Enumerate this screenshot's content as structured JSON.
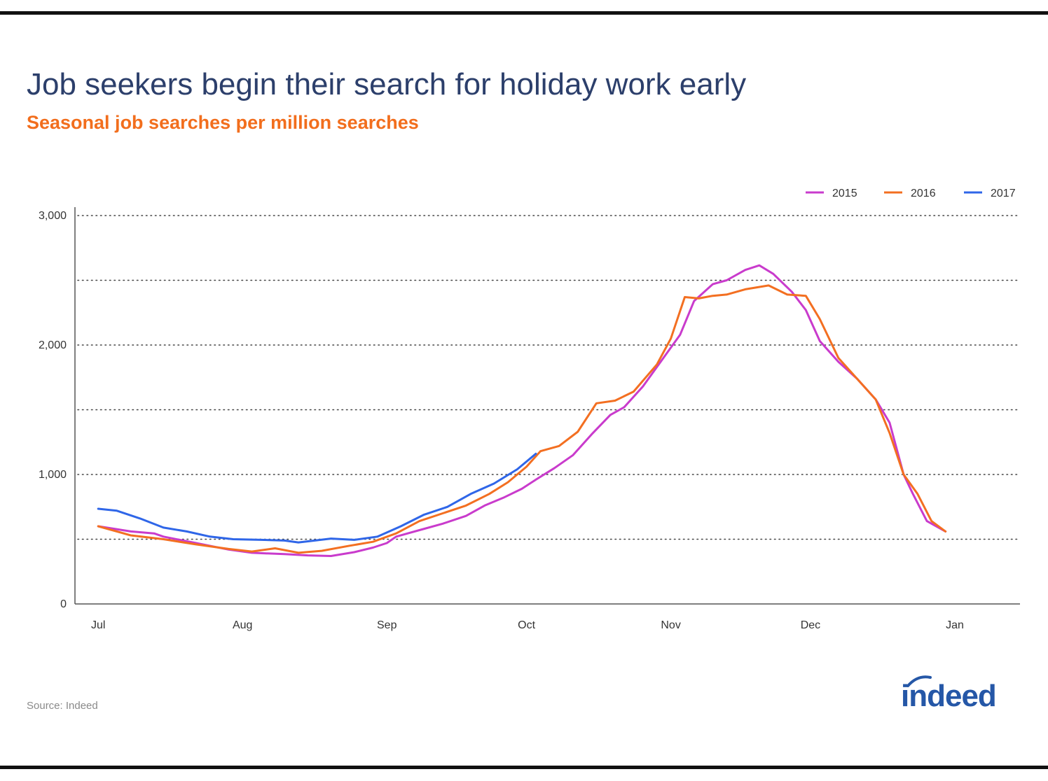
{
  "title": "Job seekers begin their search for holiday work early",
  "subtitle": "Seasonal job searches per million searches",
  "source": "Source: Indeed",
  "logo": {
    "text": "indeed",
    "icon": "indeed-logo-icon",
    "color": "#2557a7"
  },
  "colors": {
    "2015": "#c93bcc",
    "2016": "#f36f21",
    "2017": "#2f66e8",
    "title": "#2c3f6b",
    "subtitle": "#f26e1d"
  },
  "chart_data": {
    "type": "line",
    "title": "Job seekers begin their search for holiday work early",
    "subtitle": "Seasonal job searches per million searches",
    "xlabel": "",
    "ylabel": "",
    "x_ticks": [
      "Jul",
      "Aug",
      "Sep",
      "Oct",
      "Nov",
      "Dec",
      "Jan"
    ],
    "y_ticks": [
      0,
      500,
      1000,
      1500,
      2000,
      2500,
      3000
    ],
    "y_tick_labels": [
      "0",
      "",
      "1,000",
      "",
      "2,000",
      "",
      "3,000"
    ],
    "ylim": [
      0,
      3000
    ],
    "xlim": [
      "Jun 26",
      "Jan 15"
    ],
    "grid": "horizontal dotted",
    "legend": "top-right",
    "series": [
      {
        "name": "2015",
        "color": "#c93bcc",
        "points": [
          [
            "Jul 1",
            600
          ],
          [
            "Jul 8",
            560
          ],
          [
            "Jul 13",
            545
          ],
          [
            "Jul 15",
            520
          ],
          [
            "Jul 22",
            470
          ],
          [
            "Jul 29",
            420
          ],
          [
            "Aug 3",
            395
          ],
          [
            "Aug 10",
            385
          ],
          [
            "Aug 15",
            375
          ],
          [
            "Aug 20",
            370
          ],
          [
            "Aug 25",
            400
          ],
          [
            "Aug 29",
            435
          ],
          [
            "Sep 1",
            470
          ],
          [
            "Sep 3",
            520
          ],
          [
            "Sep 8",
            570
          ],
          [
            "Sep 13",
            620
          ],
          [
            "Sep 18",
            680
          ],
          [
            "Sep 22",
            760
          ],
          [
            "Sep 26",
            820
          ],
          [
            "Sep 30",
            890
          ],
          [
            "Oct 3",
            960
          ],
          [
            "Oct 7",
            1050
          ],
          [
            "Oct 11",
            1150
          ],
          [
            "Oct 15",
            1310
          ],
          [
            "Oct 19",
            1460
          ],
          [
            "Oct 22",
            1520
          ],
          [
            "Oct 26",
            1680
          ],
          [
            "Oct 30",
            1880
          ],
          [
            "Nov 3",
            2080
          ],
          [
            "Nov 6",
            2340
          ],
          [
            "Nov 10",
            2470
          ],
          [
            "Nov 13",
            2500
          ],
          [
            "Nov 17",
            2580
          ],
          [
            "Nov 20",
            2615
          ],
          [
            "Nov 23",
            2550
          ],
          [
            "Nov 27",
            2410
          ],
          [
            "Nov 30",
            2270
          ],
          [
            "Dec 3",
            2030
          ],
          [
            "Dec 7",
            1870
          ],
          [
            "Dec 11",
            1740
          ],
          [
            "Dec 15",
            1580
          ],
          [
            "Dec 18",
            1400
          ],
          [
            "Dec 21",
            1000
          ],
          [
            "Dec 23",
            850
          ],
          [
            "Dec 26",
            640
          ],
          [
            "Dec 30",
            560
          ]
        ]
      },
      {
        "name": "2016",
        "color": "#f36f21",
        "points": [
          [
            "Jul 1",
            600
          ],
          [
            "Jul 8",
            530
          ],
          [
            "Jul 15",
            500
          ],
          [
            "Jul 22",
            460
          ],
          [
            "Jul 29",
            425
          ],
          [
            "Aug 3",
            405
          ],
          [
            "Aug 8",
            430
          ],
          [
            "Aug 13",
            395
          ],
          [
            "Aug 18",
            410
          ],
          [
            "Aug 24",
            450
          ],
          [
            "Aug 29",
            480
          ],
          [
            "Sep 3",
            545
          ],
          [
            "Sep 8",
            640
          ],
          [
            "Sep 13",
            700
          ],
          [
            "Sep 18",
            760
          ],
          [
            "Sep 23",
            850
          ],
          [
            "Sep 27",
            940
          ],
          [
            "Oct 1",
            1060
          ],
          [
            "Oct 4",
            1180
          ],
          [
            "Oct 8",
            1220
          ],
          [
            "Oct 12",
            1330
          ],
          [
            "Oct 16",
            1550
          ],
          [
            "Oct 20",
            1570
          ],
          [
            "Oct 24",
            1640
          ],
          [
            "Oct 29",
            1850
          ],
          [
            "Nov 1",
            2050
          ],
          [
            "Nov 4",
            2370
          ],
          [
            "Nov 7",
            2360
          ],
          [
            "Nov 10",
            2380
          ],
          [
            "Nov 13",
            2390
          ],
          [
            "Nov 17",
            2430
          ],
          [
            "Nov 22",
            2460
          ],
          [
            "Nov 26",
            2390
          ],
          [
            "Nov 30",
            2380
          ],
          [
            "Dec 3",
            2200
          ],
          [
            "Dec 7",
            1900
          ],
          [
            "Dec 11",
            1740
          ],
          [
            "Dec 15",
            1580
          ],
          [
            "Dec 18",
            1320
          ],
          [
            "Dec 21",
            1000
          ],
          [
            "Dec 24",
            850
          ],
          [
            "Dec 27",
            640
          ],
          [
            "Dec 30",
            560
          ]
        ]
      },
      {
        "name": "2017",
        "color": "#2f66e8",
        "points": [
          [
            "Jul 1",
            735
          ],
          [
            "Jul 5",
            720
          ],
          [
            "Jul 10",
            660
          ],
          [
            "Jul 15",
            590
          ],
          [
            "Jul 20",
            560
          ],
          [
            "Jul 25",
            520
          ],
          [
            "Jul 30",
            500
          ],
          [
            "Aug 5",
            495
          ],
          [
            "Aug 10",
            490
          ],
          [
            "Aug 13",
            475
          ],
          [
            "Aug 20",
            505
          ],
          [
            "Aug 25",
            495
          ],
          [
            "Aug 30",
            520
          ],
          [
            "Sep 4",
            600
          ],
          [
            "Sep 9",
            690
          ],
          [
            "Sep 14",
            750
          ],
          [
            "Sep 19",
            850
          ],
          [
            "Sep 24",
            930
          ],
          [
            "Sep 29",
            1040
          ],
          [
            "Oct 3",
            1160
          ]
        ]
      }
    ]
  }
}
